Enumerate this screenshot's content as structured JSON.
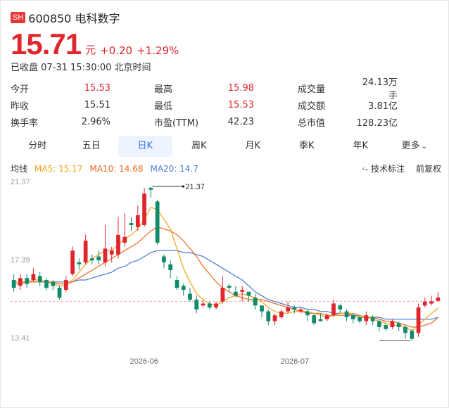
{
  "header": {
    "badge": "SH",
    "code_name": "600850 电科数字"
  },
  "quote": {
    "price": "15.71",
    "unit": "元",
    "change": "+0.20",
    "change_pct": "+1.29%"
  },
  "status": "已收盘 07-31 15:30:00 北京时间",
  "stats": [
    [
      {
        "label": "今开",
        "value": "15.53",
        "color": "up"
      },
      {
        "label": "最高",
        "value": "15.98",
        "color": "up"
      },
      {
        "label": "成交量",
        "value": "24.13万手",
        "color": ""
      }
    ],
    [
      {
        "label": "昨收",
        "value": "15.51",
        "color": ""
      },
      {
        "label": "最低",
        "value": "15.53",
        "color": "up"
      },
      {
        "label": "成交额",
        "value": "3.81亿",
        "color": ""
      }
    ],
    [
      {
        "label": "换手率",
        "value": "2.96%",
        "color": ""
      },
      {
        "label": "市盈(TTM)",
        "value": "42.23",
        "color": ""
      },
      {
        "label": "总市值",
        "value": "128.23亿",
        "color": ""
      }
    ]
  ],
  "tabs": {
    "t0": "分时",
    "t1": "五日",
    "t2": "日K",
    "t3": "周K",
    "t4": "月K",
    "t5": "季K",
    "t6": "年K",
    "more": "更多"
  },
  "ma": {
    "title": "均线",
    "ma5": "MA5: 15.17",
    "ma10": "MA10: 14.68",
    "ma20": "MA20: 14.7",
    "tech": "技术标注",
    "adj": "前复权"
  },
  "colors": {
    "up": "#e0262d",
    "down": "#0f8a6a",
    "ma5": "#f2a318",
    "ma10": "#ed6a1f",
    "ma20": "#4a78d6"
  },
  "chart_data": {
    "type": "candlestick",
    "y_ticks": [
      "21.37",
      "17.39",
      "13.41"
    ],
    "x_ticks": [
      "2026-06",
      "2026-07"
    ],
    "high_label": "21.37",
    "ylim": [
      13.41,
      21.37
    ],
    "candles": [
      [
        16.6,
        16.2,
        16.9,
        16.0
      ],
      [
        16.3,
        16.7,
        16.9,
        16.1
      ],
      [
        16.7,
        16.4,
        16.9,
        16.2
      ],
      [
        16.6,
        16.9,
        17.2,
        16.5
      ],
      [
        16.8,
        16.5,
        17.0,
        16.3
      ],
      [
        16.6,
        16.2,
        16.7,
        16.1
      ],
      [
        16.5,
        16.3,
        16.6,
        16.1
      ],
      [
        16.2,
        15.7,
        16.3,
        15.6
      ],
      [
        16.1,
        16.6,
        16.8,
        16.0
      ],
      [
        16.9,
        18.1,
        18.3,
        16.8
      ],
      [
        17.5,
        17.4,
        17.7,
        17.1
      ],
      [
        17.5,
        18.6,
        18.9,
        17.4
      ],
      [
        17.7,
        17.6,
        17.9,
        17.4
      ],
      [
        17.8,
        17.6,
        18.1,
        17.4
      ],
      [
        17.5,
        18.2,
        19.4,
        17.3
      ],
      [
        17.9,
        18.1,
        18.3,
        17.5
      ],
      [
        17.9,
        18.9,
        19.8,
        17.7
      ],
      [
        18.5,
        18.8,
        20.0,
        18.3
      ],
      [
        19.5,
        19.4,
        19.8,
        19.1
      ],
      [
        19.3,
        19.9,
        20.4,
        19.1
      ],
      [
        19.4,
        21.0,
        21.3,
        19.3
      ],
      [
        21.3,
        21.2,
        21.37,
        20.8
      ],
      [
        20.6,
        18.5,
        20.7,
        18.4
      ],
      [
        17.8,
        17.5,
        17.9,
        17.2
      ],
      [
        17.4,
        17.1,
        17.6,
        16.7
      ],
      [
        16.6,
        16.2,
        16.8,
        16.1
      ],
      [
        16.3,
        16.1,
        16.4,
        15.8
      ],
      [
        15.9,
        15.6,
        16.2,
        15.5
      ],
      [
        15.6,
        15.1,
        15.8,
        14.9
      ],
      [
        15.3,
        15.4,
        15.6,
        15.2
      ],
      [
        15.4,
        15.2,
        15.5,
        15.1
      ],
      [
        15.2,
        15.4,
        15.5,
        15.1
      ],
      [
        15.5,
        16.2,
        16.8,
        15.4
      ],
      [
        16.3,
        16.2,
        16.4,
        16.0
      ],
      [
        16.0,
        15.8,
        16.3,
        15.7
      ],
      [
        16.0,
        16.1,
        16.3,
        15.5
      ],
      [
        16.0,
        15.8,
        16.0,
        15.5
      ],
      [
        15.7,
        15.3,
        15.9,
        15.1
      ],
      [
        15.3,
        15.0,
        15.3,
        14.7
      ],
      [
        15.0,
        14.5,
        15.1,
        14.3
      ],
      [
        14.5,
        14.8,
        14.9,
        14.3
      ],
      [
        14.7,
        15.0,
        15.1,
        14.6
      ],
      [
        15.0,
        15.2,
        15.5,
        14.9
      ],
      [
        15.2,
        15.1,
        15.3,
        14.9
      ],
      [
        15.0,
        15.1,
        15.2,
        14.9
      ],
      [
        15.0,
        14.8,
        15.1,
        14.5
      ],
      [
        14.8,
        14.4,
        14.9,
        14.3
      ],
      [
        14.6,
        14.5,
        14.9,
        14.5
      ],
      [
        14.6,
        14.8,
        14.9,
        14.5
      ],
      [
        14.8,
        15.4,
        15.6,
        14.7
      ],
      [
        15.3,
        15.1,
        15.4,
        14.9
      ],
      [
        15.0,
        14.7,
        15.1,
        14.5
      ],
      [
        14.8,
        14.6,
        14.9,
        14.4
      ],
      [
        14.7,
        14.5,
        14.8,
        14.4
      ],
      [
        14.5,
        14.8,
        15.0,
        14.3
      ],
      [
        14.7,
        14.5,
        14.8,
        14.3
      ],
      [
        14.5,
        14.2,
        14.6,
        14.0
      ],
      [
        14.3,
        14.1,
        14.4,
        14.0
      ],
      [
        14.2,
        14.5,
        14.6,
        14.1
      ],
      [
        14.4,
        14.2,
        14.5,
        14.0
      ],
      [
        14.2,
        13.9,
        14.3,
        13.6
      ],
      [
        14.0,
        13.6,
        14.1,
        13.5
      ],
      [
        13.9,
        15.2,
        15.4,
        13.7
      ],
      [
        15.3,
        15.5,
        15.7,
        15.2
      ],
      [
        15.4,
        15.51,
        15.8,
        15.3
      ],
      [
        15.53,
        15.71,
        15.98,
        15.53
      ]
    ],
    "ma5": [
      16.5,
      16.5,
      16.5,
      16.6,
      16.6,
      16.5,
      16.4,
      16.3,
      16.3,
      16.6,
      17.0,
      17.4,
      17.7,
      17.9,
      18.1,
      18.1,
      18.4,
      18.7,
      18.9,
      19.2,
      19.7,
      20.3,
      20.2,
      19.7,
      19.2,
      18.2,
      17.2,
      16.5,
      15.9,
      15.6,
      15.4,
      15.3,
      15.5,
      15.7,
      15.8,
      15.9,
      15.8,
      15.7,
      15.5,
      15.2,
      15.0,
      14.9,
      14.9,
      15.0,
      15.0,
      15.0,
      14.9,
      14.8,
      14.7,
      14.8,
      14.9,
      14.9,
      14.9,
      14.8,
      14.7,
      14.6,
      14.5,
      14.4,
      14.3,
      14.3,
      14.2,
      14.0,
      14.3,
      14.6,
      14.9,
      15.17
    ],
    "ma10": [
      16.4,
      16.4,
      16.5,
      16.5,
      16.5,
      16.5,
      16.5,
      16.4,
      16.4,
      16.5,
      16.7,
      16.9,
      17.1,
      17.3,
      17.5,
      17.7,
      17.9,
      18.1,
      18.3,
      18.5,
      18.8,
      19.1,
      19.3,
      19.2,
      19.1,
      18.9,
      18.6,
      18.2,
      17.8,
      17.3,
      16.9,
      16.5,
      16.2,
      16.0,
      15.8,
      15.7,
      15.6,
      15.6,
      15.6,
      15.5,
      15.4,
      15.3,
      15.2,
      15.1,
      15.0,
      14.9,
      14.9,
      14.9,
      14.8,
      14.8,
      14.8,
      14.8,
      14.8,
      14.7,
      14.7,
      14.7,
      14.6,
      14.5,
      14.5,
      14.4,
      14.3,
      14.2,
      14.2,
      14.3,
      14.4,
      14.68
    ],
    "ma20": [
      16.5,
      16.5,
      16.5,
      16.5,
      16.5,
      16.5,
      16.5,
      16.5,
      16.5,
      16.5,
      16.6,
      16.6,
      16.7,
      16.8,
      16.9,
      17.0,
      17.2,
      17.3,
      17.5,
      17.6,
      17.8,
      18.0,
      18.1,
      18.1,
      18.1,
      18.1,
      18.0,
      18.0,
      17.9,
      17.8,
      17.6,
      17.4,
      17.2,
      17.0,
      16.8,
      16.6,
      16.3,
      16.0,
      15.8,
      15.6,
      15.5,
      15.4,
      15.3,
      15.2,
      15.2,
      15.1,
      15.1,
      15.0,
      15.0,
      14.9,
      14.9,
      14.9,
      14.8,
      14.8,
      14.7,
      14.7,
      14.7,
      14.6,
      14.6,
      14.6,
      14.6,
      14.6,
      14.6,
      14.6,
      14.6,
      14.7
    ]
  }
}
